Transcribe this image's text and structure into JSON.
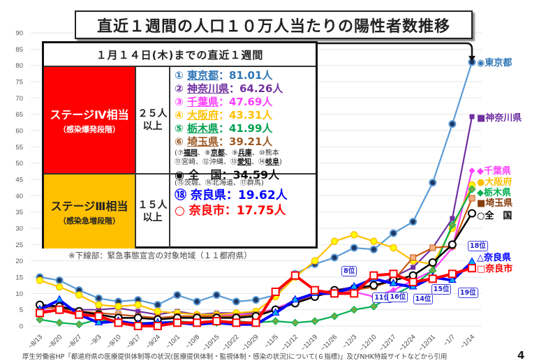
{
  "chart_data": {
    "type": "line",
    "title": "直近１週間の人口１０万人当たりの陽性者数推移",
    "xlabel": "",
    "ylabel": "",
    "ylim": [
      0,
      90
    ],
    "yticks": [
      0,
      5,
      10,
      15,
      20,
      25,
      30,
      35,
      40,
      45,
      50,
      55,
      60,
      65,
      70,
      75,
      80,
      85,
      90
    ],
    "grid": true,
    "categories": [
      "~8/13",
      "~8/20",
      "~8/27",
      "~9/3",
      "~9/10",
      "~9/17",
      "~9/24",
      "~10/1",
      "~10/8",
      "~10/15",
      "~10/22",
      "~10/29",
      "~11/5",
      "~11/12",
      "~11/19",
      "~11/26",
      "~12/3",
      "~12/10",
      "~12/17",
      "~12/24",
      "~12/31",
      "~1/7",
      "~1/14"
    ],
    "series": [
      {
        "name": "東京都",
        "color": "#5b9bd5",
        "marker": "circle-dark",
        "values": [
          15,
          14,
          11,
          8.5,
          7.5,
          8,
          6.5,
          9.5,
          7.5,
          9.5,
          7.5,
          8,
          9.5,
          16,
          19,
          21,
          24,
          23.5,
          28.5,
          32,
          44,
          62,
          81.01
        ]
      },
      {
        "name": "神奈川県",
        "color": "#7030a0",
        "marker": "square-purple",
        "values": [
          6,
          6,
          5,
          5,
          5.5,
          4.5,
          3.5,
          4.5,
          3.5,
          4,
          4,
          4,
          5,
          8,
          10,
          11,
          12,
          12,
          15,
          18,
          24,
          33,
          64.26
        ]
      },
      {
        "name": "千葉県",
        "color": "#ff40ff",
        "marker": "diamond-pink",
        "values": [
          5,
          4.5,
          4,
          4,
          3.5,
          3,
          2.5,
          3,
          3,
          3.5,
          3.5,
          3.5,
          5.5,
          7.5,
          9.5,
          10,
          10.5,
          9,
          11,
          14,
          17,
          24,
          47.69
        ]
      },
      {
        "name": "大阪府",
        "color": "#ffc000",
        "marker": "circle-yellow",
        "values": [
          14,
          12,
          9.5,
          6.5,
          6,
          6.5,
          4.5,
          4,
          3.5,
          3.5,
          4,
          4.5,
          9,
          15,
          20,
          26,
          28,
          26,
          24,
          20,
          19,
          30,
          43.31
        ]
      },
      {
        "name": "栃木県",
        "color": "#00b050",
        "marker": "diamond-green",
        "values": [
          2,
          1,
          0.5,
          2,
          1,
          1,
          1,
          1.5,
          1,
          1,
          1.5,
          1,
          1.5,
          1,
          1.5,
          3,
          5,
          6,
          9.5,
          12.5,
          17,
          31,
          41.99
        ]
      },
      {
        "name": "埼玉県",
        "color": "#c65911",
        "marker": "square-brown",
        "values": [
          5.5,
          5.5,
          4.5,
          4,
          3.5,
          3,
          2.5,
          3,
          3,
          3,
          3,
          3.5,
          5,
          7.5,
          9,
          10.5,
          11,
          12,
          14,
          21,
          24,
          24.5,
          39.21
        ]
      },
      {
        "name": "全国",
        "color": "#000000",
        "marker": "circle-white",
        "values": [
          6.5,
          6,
          4.5,
          3.5,
          2.5,
          2.5,
          2,
          2.5,
          2.5,
          2.5,
          2.5,
          3,
          5,
          7,
          9,
          11,
          11.5,
          12.5,
          14,
          15.5,
          19.5,
          25,
          34.59
        ]
      },
      {
        "name": "奈良県",
        "color": "#0000ff",
        "marker": "triangle-cyan",
        "values": [
          5,
          8,
          3.5,
          1,
          1.5,
          0.5,
          1,
          1,
          0.5,
          1,
          0.5,
          0.5,
          4,
          8,
          10,
          10,
          12,
          14.5,
          13,
          12,
          15,
          14,
          19.62
        ]
      },
      {
        "name": "奈良市",
        "color": "#ff0000",
        "marker": "square-white-red",
        "values": [
          4,
          5,
          3.5,
          3,
          1,
          0,
          0,
          1,
          1,
          1.5,
          1,
          1,
          10.5,
          15.5,
          11,
          10,
          10,
          15.5,
          16,
          13.5,
          14.5,
          16,
          17.75
        ]
      }
    ],
    "annotations": [
      {
        "label": "8位",
        "series": "奈良県",
        "category": "~12/3"
      },
      {
        "label": "11位",
        "series": "奈良県",
        "category": "~12/10"
      },
      {
        "label": "16位",
        "series": "奈良県",
        "category": "~12/17"
      },
      {
        "label": "14位",
        "series": "奈良県",
        "category": "~12/24"
      },
      {
        "label": "15位",
        "series": "奈良県",
        "category": "~12/31"
      },
      {
        "label": "19位",
        "series": "奈良県",
        "category": "~1/7"
      },
      {
        "label": "18位",
        "series": "奈良県",
        "category": "~1/14"
      }
    ],
    "legend": "right"
  },
  "legend_labels": [
    {
      "text": "◉東京都",
      "color": "#2e75b6"
    },
    {
      "text": "■神奈川県",
      "color": "#7030a0"
    },
    {
      "text": "◆千葉県",
      "color": "#ff40ff"
    },
    {
      "text": "●大阪府",
      "color": "#ffc000"
    },
    {
      "text": "◆栃木県",
      "color": "#00b050"
    },
    {
      "text": "■埼玉県",
      "color": "#843c0c"
    },
    {
      "text": "○全　国",
      "color": "#000000"
    },
    {
      "text": "△奈良県",
      "color": "#0000ff"
    },
    {
      "text": "□奈良市",
      "color": "#ff0000"
    }
  ],
  "info": {
    "header": "１月１４日(木)までの直近１週間",
    "stage4": {
      "name": "ステージⅣ相当",
      "sub": "（感染爆発段階）",
      "threshold_1": "２５人",
      "threshold_2": "以上"
    },
    "stage3": {
      "name": "ステージⅢ相当",
      "sub": "（感染急増段階）",
      "threshold_1": "１５人",
      "threshold_2": "以上"
    },
    "stage4_items": [
      {
        "num": "①",
        "pref": "東京都",
        "value": "：81.01人",
        "color": "#2e75b6"
      },
      {
        "num": "②",
        "pref": "神奈川県",
        "value": "：64.26人",
        "color": "#7030a0"
      },
      {
        "num": "③",
        "pref": "千葉県",
        "value": "：47.69人",
        "color": "#ff40ff"
      },
      {
        "num": "④",
        "pref": "大阪府",
        "value": "：43.31人",
        "color": "#ffc000"
      },
      {
        "num": "⑤",
        "pref": "栃木県",
        "value": "：41.99人",
        "color": "#00a050"
      },
      {
        "num": "⑥",
        "pref": "埼玉県",
        "value": "：39.21人",
        "color": "#9c5a26"
      }
    ],
    "stage4_others_1": [
      "(⑦",
      "福岡",
      "、⑧",
      "京都",
      "、⑨",
      "兵庫",
      "、⑩熊本"
    ],
    "stage4_others_2": [
      "⑪宮崎、⑫沖縄、⑬",
      "愛知",
      "、⑭",
      "岐阜",
      ")"
    ],
    "national": "◉ 全　国：34.59人",
    "stage3_others": "(⑮茨城、⑯北海道、⑰群馬)",
    "nara_pref": "⑱ 奈良県：19.62人",
    "nara_city": "○ 奈良市：17.75人"
  },
  "note": "※下線部：緊急事態宣言の対象地域（１１都府県）",
  "footer": "厚生労働省HP「都道府県の医療提供体制等の状況(医療提供体制・監視体制・感染の状況)について(６指標)」及びNHK特設サイトなどから引用",
  "page_number": "4"
}
